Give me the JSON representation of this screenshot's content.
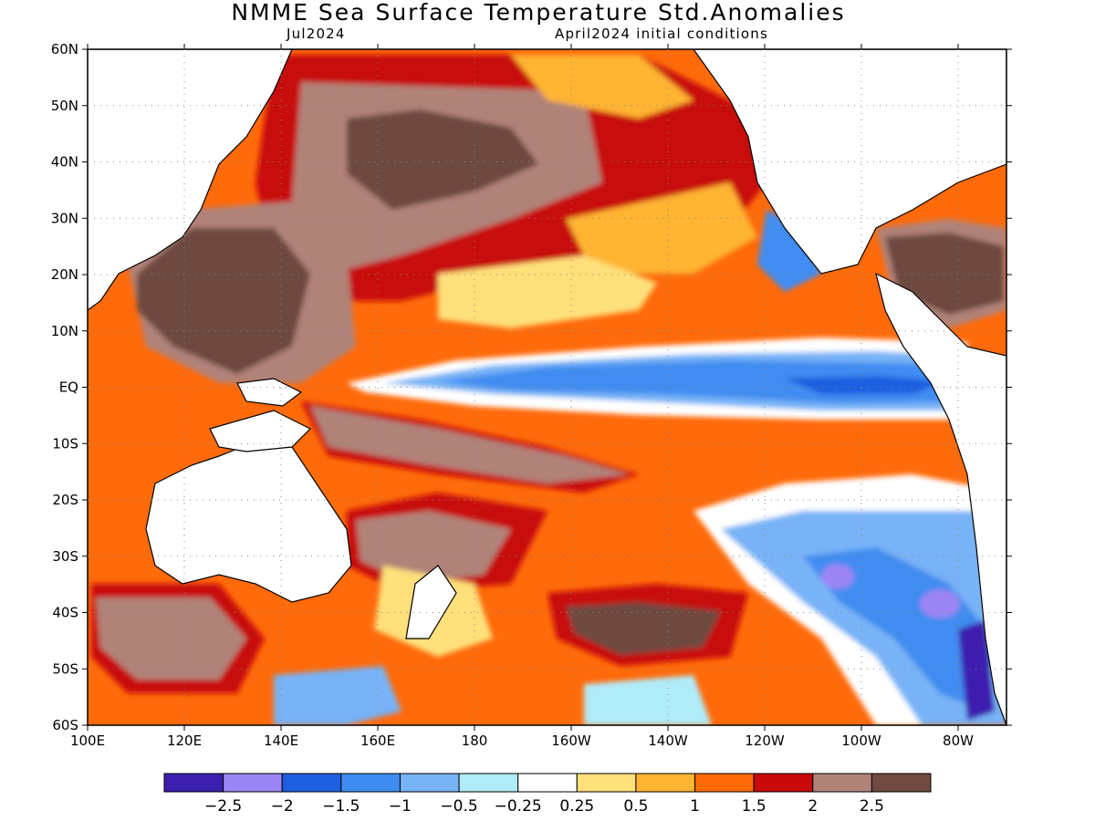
{
  "header": {
    "title": "NMME Sea Surface Temperature Std.Anomalies",
    "target_month": "Jul2024",
    "initial_conditions": "April2024 initial conditions"
  },
  "map": {
    "lat_labels": [
      "60N",
      "50N",
      "40N",
      "30N",
      "20N",
      "10N",
      "EQ",
      "10S",
      "20S",
      "30S",
      "40S",
      "50S",
      "60S"
    ],
    "lon_labels": [
      "100E",
      "120E",
      "140E",
      "160E",
      "180",
      "160W",
      "140W",
      "120W",
      "100W",
      "80W"
    ],
    "lat_range": [
      -60,
      60
    ],
    "lon_range_east": [
      100,
      290
    ],
    "grid": "dotted"
  },
  "colorbar": {
    "colors": [
      "#3c1fae",
      "#9b85f4",
      "#1e5fe0",
      "#3f8cf0",
      "#77b3f6",
      "#b0ecf8",
      "#ffffff",
      "#ffe07a",
      "#ffb432",
      "#ff6a0a",
      "#c80a0a",
      "#b08278",
      "#6e4a40"
    ],
    "labels": [
      "-2.5",
      "-2",
      "-1.5",
      "-1",
      "-0.5",
      "-0.25",
      "0.25",
      "0.5",
      "1",
      "1.5",
      "2",
      "2.5"
    ]
  }
}
